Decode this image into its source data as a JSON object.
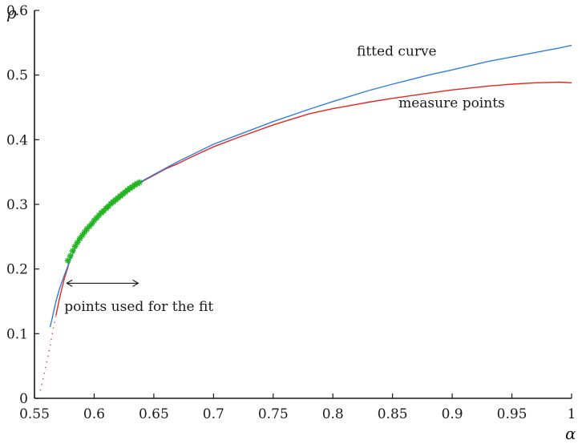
{
  "chart_data": {
    "type": "line",
    "xlabel": "α",
    "ylabel": "ρ",
    "xlim": [
      0.55,
      1.0
    ],
    "ylim": [
      0,
      0.6
    ],
    "x_ticks": [
      0.55,
      0.6,
      0.65,
      0.7,
      0.75,
      0.8,
      0.85,
      0.9,
      0.95,
      1.0
    ],
    "x_tick_labels": [
      "0.55",
      "0.6",
      "0.65",
      "0.7",
      "0.75",
      "0.8",
      "0.85",
      "0.9",
      "0.95",
      "1"
    ],
    "y_ticks": [
      0,
      0.1,
      0.2,
      0.3,
      0.4,
      0.5,
      0.6
    ],
    "y_tick_labels": [
      "0",
      "0.1",
      "0.2",
      "0.3",
      "0.4",
      "0.5",
      "0.6"
    ],
    "grid": false,
    "series": [
      {
        "name": "measure points",
        "color": "#e8251c",
        "style": "line",
        "x": [
          0.555,
          0.557,
          0.559,
          0.561,
          0.563,
          0.565,
          0.568,
          0.571,
          0.575,
          0.58,
          0.585,
          0.59,
          0.6,
          0.61,
          0.62,
          0.63,
          0.64,
          0.65,
          0.66,
          0.67,
          0.68,
          0.7,
          0.72,
          0.75,
          0.78,
          0.8,
          0.83,
          0.85,
          0.88,
          0.9,
          0.93,
          0.95,
          0.97,
          0.99,
          1.0
        ],
        "y": [
          0.012,
          0.028,
          0.045,
          0.063,
          0.08,
          0.1,
          0.128,
          0.155,
          0.185,
          0.215,
          0.235,
          0.25,
          0.275,
          0.295,
          0.31,
          0.325,
          0.335,
          0.345,
          0.355,
          0.363,
          0.372,
          0.389,
          0.403,
          0.423,
          0.44,
          0.448,
          0.458,
          0.464,
          0.472,
          0.477,
          0.483,
          0.486,
          0.488,
          0.489,
          0.488
        ]
      },
      {
        "name": "fitted curve",
        "color": "#2f7fe0",
        "style": "line",
        "x": [
          0.563,
          0.565,
          0.568,
          0.571,
          0.575,
          0.58,
          0.585,
          0.59,
          0.6,
          0.61,
          0.62,
          0.63,
          0.64,
          0.65,
          0.66,
          0.67,
          0.68,
          0.7,
          0.72,
          0.75,
          0.78,
          0.8,
          0.83,
          0.85,
          0.88,
          0.9,
          0.93,
          0.95,
          0.97,
          0.99,
          1.0
        ],
        "y": [
          0.11,
          0.125,
          0.15,
          0.17,
          0.19,
          0.215,
          0.235,
          0.25,
          0.275,
          0.295,
          0.31,
          0.324,
          0.336,
          0.346,
          0.356,
          0.366,
          0.375,
          0.393,
          0.407,
          0.428,
          0.447,
          0.459,
          0.476,
          0.486,
          0.5,
          0.508,
          0.521,
          0.528,
          0.535,
          0.542,
          0.546
        ]
      },
      {
        "name": "points used for the fit",
        "color": "#22b522",
        "style": "star-markers",
        "x": [
          0.578,
          0.58,
          0.582,
          0.584,
          0.586,
          0.588,
          0.59,
          0.592,
          0.594,
          0.596,
          0.598,
          0.6,
          0.602,
          0.604,
          0.606,
          0.608,
          0.61,
          0.612,
          0.614,
          0.616,
          0.618,
          0.62,
          0.622,
          0.624,
          0.626,
          0.628,
          0.63,
          0.632,
          0.634,
          0.636,
          0.638
        ],
        "y": [
          0.213,
          0.22,
          0.228,
          0.235,
          0.241,
          0.247,
          0.252,
          0.257,
          0.262,
          0.266,
          0.27,
          0.275,
          0.279,
          0.283,
          0.287,
          0.29,
          0.294,
          0.297,
          0.301,
          0.304,
          0.307,
          0.31,
          0.313,
          0.316,
          0.319,
          0.322,
          0.325,
          0.327,
          0.33,
          0.332,
          0.334
        ]
      }
    ],
    "annotations": [
      {
        "text": "fitted curve",
        "x": 0.82,
        "y": 0.53
      },
      {
        "text": "measure points",
        "x": 0.855,
        "y": 0.45
      },
      {
        "text": "points used for the fit",
        "x": 0.575,
        "y": 0.135
      }
    ],
    "fit_range_arrow": {
      "x_start": 0.577,
      "x_end": 0.637,
      "y": 0.178
    }
  }
}
